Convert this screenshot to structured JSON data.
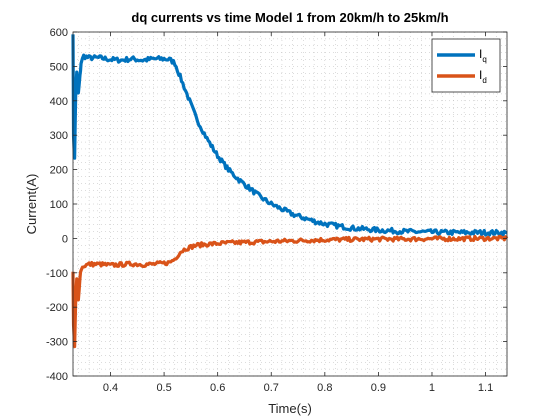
{
  "chart_data": {
    "type": "line",
    "title": "dq currents vs time Model 1 from 20km/h to 25km/h",
    "xlabel": "Time(s)",
    "ylabel": "Current(A)",
    "xlim": [
      0.33,
      1.14
    ],
    "ylim": [
      -400,
      600
    ],
    "xticks": [
      0.4,
      0.5,
      0.6,
      0.7,
      0.8,
      0.9,
      1,
      1.1
    ],
    "xtick_labels": [
      "0.4",
      "0.5",
      "0.6",
      "0.7",
      "0.8",
      "0.9",
      "1",
      "1.1"
    ],
    "yticks": [
      -400,
      -300,
      -200,
      -100,
      0,
      100,
      200,
      300,
      400,
      500,
      600
    ],
    "ytick_labels": [
      "-400",
      "-300",
      "-200",
      "-100",
      "0",
      "100",
      "200",
      "300",
      "400",
      "500",
      "600"
    ],
    "grid": "minor-dotted",
    "legend_position": "top-right",
    "series": [
      {
        "name": "Iq",
        "name_main": "I",
        "name_sub": "q",
        "color": "#0072BD",
        "x": [
          0.33,
          0.331,
          0.333,
          0.335,
          0.337,
          0.34,
          0.343,
          0.345,
          0.35,
          0.36,
          0.38,
          0.4,
          0.42,
          0.44,
          0.46,
          0.48,
          0.5,
          0.51,
          0.52,
          0.53,
          0.54,
          0.55,
          0.56,
          0.58,
          0.6,
          0.62,
          0.64,
          0.66,
          0.68,
          0.7,
          0.72,
          0.74,
          0.76,
          0.78,
          0.8,
          0.85,
          0.9,
          0.95,
          1.0,
          1.05,
          1.1,
          1.14
        ],
        "y": [
          600,
          300,
          230,
          420,
          480,
          420,
          470,
          510,
          530,
          525,
          525,
          520,
          518,
          522,
          518,
          522,
          522,
          520,
          510,
          470,
          430,
          390,
          350,
          290,
          240,
          200,
          170,
          145,
          120,
          100,
          85,
          70,
          60,
          50,
          42,
          30,
          24,
          20,
          18,
          17,
          17,
          16
        ]
      },
      {
        "name": "Id",
        "name_main": "I",
        "name_sub": "d",
        "color": "#D95319",
        "x": [
          0.33,
          0.331,
          0.333,
          0.335,
          0.337,
          0.34,
          0.343,
          0.345,
          0.35,
          0.36,
          0.38,
          0.4,
          0.42,
          0.44,
          0.46,
          0.48,
          0.5,
          0.51,
          0.52,
          0.53,
          0.54,
          0.55,
          0.56,
          0.58,
          0.6,
          0.62,
          0.64,
          0.66,
          0.68,
          0.7,
          0.72,
          0.74,
          0.76,
          0.78,
          0.8,
          0.85,
          0.9,
          0.95,
          1.0,
          1.05,
          1.1,
          1.14
        ],
        "y": [
          -100,
          -250,
          -320,
          -180,
          -120,
          -180,
          -110,
          -90,
          -80,
          -75,
          -75,
          -78,
          -76,
          -74,
          -76,
          -75,
          -72,
          -70,
          -60,
          -40,
          -30,
          -25,
          -20,
          -17,
          -15,
          -13,
          -12,
          -11,
          -10,
          -9,
          -8,
          -7,
          -6,
          -5,
          -4,
          -3,
          -2,
          -2,
          -1,
          -1,
          0,
          0
        ]
      }
    ]
  }
}
